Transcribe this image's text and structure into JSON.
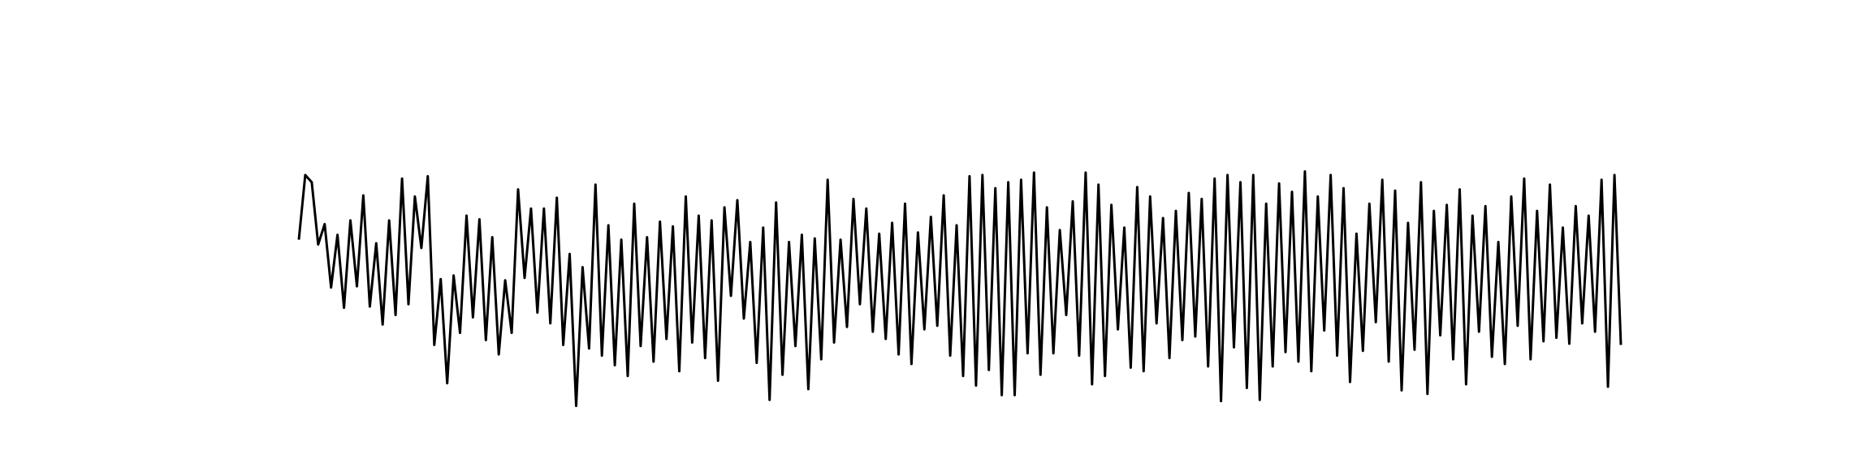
{
  "chart_data": {
    "type": "line",
    "title": "",
    "xlabel": "",
    "ylabel": "",
    "grid": false,
    "legend": "none",
    "axes_visible": false,
    "line_color": "#000000",
    "ylim": [
      -1.0,
      1.0
    ],
    "series": [
      {
        "values": [
          0.42,
          0.96,
          0.9,
          0.38,
          0.55,
          0.02,
          0.46,
          -0.15,
          0.58,
          0.03,
          0.79,
          -0.14,
          0.39,
          -0.29,
          0.58,
          -0.21,
          0.93,
          -0.12,
          0.78,
          0.35,
          0.95,
          -0.46,
          0.09,
          -0.78,
          0.12,
          -0.36,
          0.62,
          -0.23,
          0.59,
          -0.42,
          0.44,
          -0.54,
          0.08,
          -0.36,
          0.84,
          0.1,
          0.68,
          -0.19,
          0.68,
          -0.28,
          0.77,
          -0.46,
          0.3,
          -0.97,
          0.19,
          -0.49,
          0.88,
          -0.55,
          0.54,
          -0.63,
          0.42,
          -0.72,
          0.72,
          -0.47,
          0.44,
          -0.6,
          0.57,
          -0.41,
          0.53,
          -0.68,
          0.78,
          -0.44,
          0.62,
          -0.57,
          0.58,
          -0.76,
          0.69,
          -0.05,
          0.75,
          -0.24,
          0.4,
          -0.61,
          0.52,
          -0.92,
          0.73,
          -0.71,
          0.4,
          -0.47,
          0.46,
          -0.83,
          0.43,
          -0.58,
          0.92,
          -0.44,
          0.42,
          -0.31,
          0.76,
          -0.12,
          0.68,
          -0.35,
          0.47,
          -0.41,
          0.56,
          -0.54,
          0.72,
          -0.62,
          0.48,
          -0.33,
          0.61,
          -0.3,
          0.79,
          -0.55,
          0.54,
          -0.72,
          0.95,
          -0.8,
          0.96,
          -0.67,
          0.85,
          -0.88,
          0.9,
          -0.88,
          0.92,
          -0.53,
          0.98,
          -0.71,
          0.69,
          -0.53,
          0.5,
          -0.21,
          0.74,
          -0.55,
          0.98,
          -0.79,
          0.88,
          -0.72,
          0.71,
          -0.33,
          0.52,
          -0.65,
          0.86,
          -0.68,
          0.78,
          -0.28,
          0.6,
          -0.57,
          0.66,
          -0.42,
          0.81,
          -0.39,
          0.76,
          -0.64,
          0.93,
          -0.93,
          0.96,
          -0.48,
          0.9,
          -0.82,
          0.96,
          -0.92,
          0.72,
          -0.64,
          0.89,
          -0.52,
          0.82,
          -0.6,
          0.99,
          -0.68,
          0.78,
          -0.34,
          0.96,
          -0.55,
          0.85,
          -0.77,
          0.47,
          -0.51,
          0.72,
          -0.27,
          0.92,
          -0.6,
          0.83,
          -0.84,
          0.56,
          -0.5,
          0.9,
          -0.87,
          0.66,
          -0.38,
          0.71,
          -0.58,
          0.84,
          -0.79,
          0.62,
          -0.35,
          0.7,
          -0.56,
          0.4,
          -0.62,
          0.78,
          -0.3,
          0.93,
          -0.58,
          0.66,
          -0.43,
          0.88,
          -0.4,
          0.52,
          -0.45,
          0.7,
          -0.28,
          0.62,
          -0.35,
          0.92,
          -0.81,
          0.96,
          -0.46
        ]
      }
    ]
  }
}
